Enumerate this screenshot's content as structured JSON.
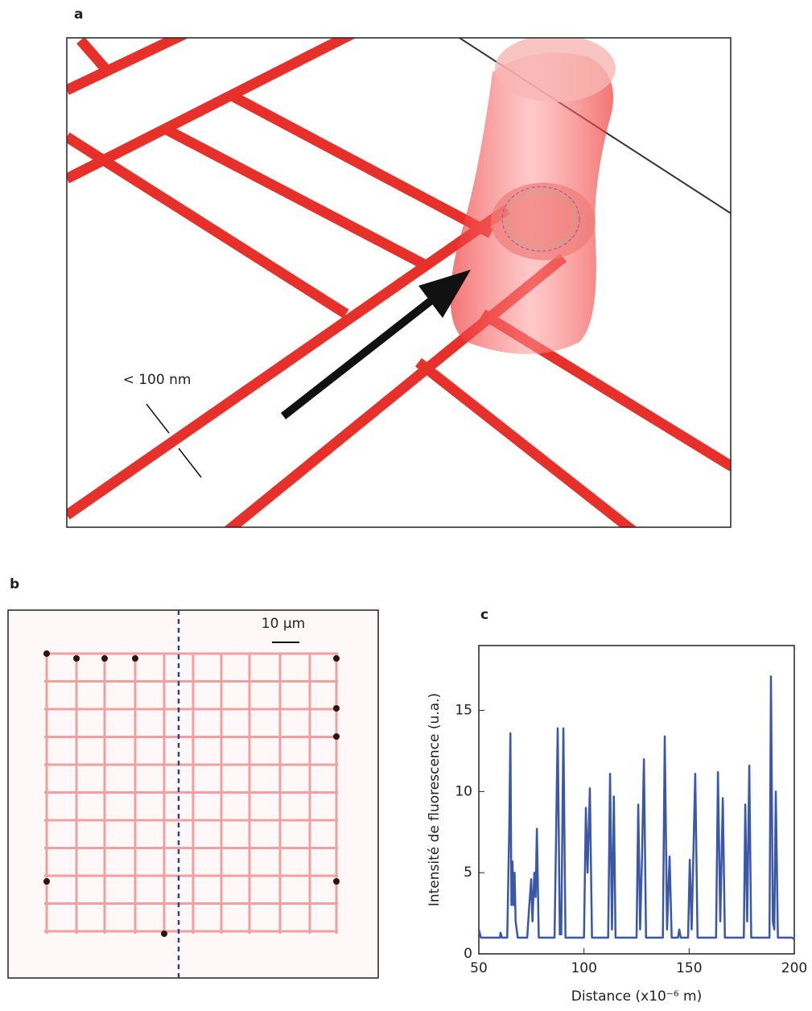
{
  "panels": {
    "a": {
      "label": "a",
      "annotation": "< 100 nm"
    },
    "b": {
      "label": "b",
      "scale_bar": "10 µm"
    }
  },
  "chart_data": {
    "type": "line",
    "panel_label": "c",
    "x_label": "Distance (x10⁻⁶ m)",
    "y_label": "Intensité de fluorescence (u.a.)",
    "color": "#3a57a8",
    "x": [
      50,
      51,
      55,
      60,
      60.3,
      61,
      63.5,
      64.5,
      65,
      65.5,
      66,
      66.5,
      67,
      67.5,
      68.5,
      73,
      74,
      74.9,
      75.5,
      76.4,
      77,
      77.6,
      78.5,
      86,
      87.5,
      88.5,
      89.2,
      90.2,
      91.2,
      100,
      100.9,
      101.7,
      102.8,
      103.8,
      111.5,
      112.4,
      113.3,
      114.2,
      115,
      125,
      125.8,
      126.7,
      127.6,
      128.5,
      129.5,
      137.5,
      138.4,
      139.5,
      140.7,
      141.7,
      144.7,
      145.3,
      146,
      149.5,
      150.3,
      151.2,
      152,
      152.9,
      154,
      162.8,
      163.7,
      164.8,
      166,
      167,
      176,
      176.7,
      177.6,
      178.6,
      179.5,
      188.2,
      188.9,
      189.8,
      190.5,
      191.2,
      192.2,
      199,
      200
    ],
    "values": [
      1.5,
      1.0,
      1.0,
      1.0,
      1.3,
      1.0,
      1.0,
      8,
      13.6,
      3,
      5.7,
      3,
      5,
      2,
      1.0,
      1.0,
      3,
      4.6,
      2,
      5,
      3.5,
      7.7,
      1.0,
      1.0,
      13.9,
      1.2,
      1.2,
      13.9,
      1.0,
      1.0,
      9,
      5,
      10.2,
      1.0,
      1.0,
      11.1,
      1.5,
      9.7,
      1.0,
      1.0,
      9.2,
      1.5,
      6,
      12,
      1.0,
      1.0,
      13.4,
      1.5,
      6,
      1.0,
      1.0,
      1.5,
      1.0,
      1.0,
      5.8,
      1.5,
      6,
      11.1,
      1.0,
      1.0,
      11.2,
      2,
      9.6,
      1.0,
      1.0,
      9.2,
      2,
      11.6,
      1.0,
      1.0,
      17.1,
      2,
      1.5,
      10,
      1.0,
      1.0,
      0.9
    ],
    "xlim": [
      50,
      200
    ],
    "ylim": [
      0,
      19
    ],
    "xticks": [
      50,
      100,
      150,
      200
    ],
    "yticks": [
      0,
      5,
      10,
      15
    ]
  }
}
